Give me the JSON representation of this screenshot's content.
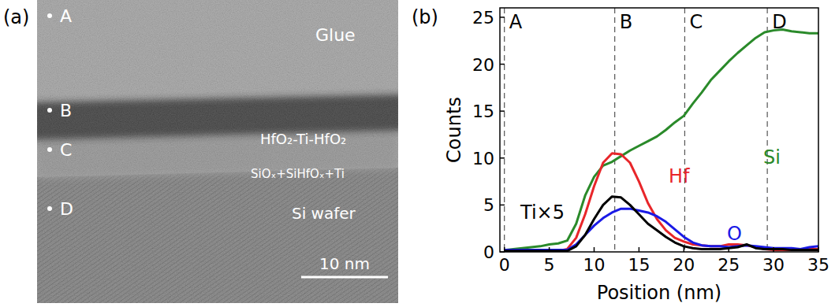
{
  "panel_labels": [
    "(a)",
    "(b)"
  ],
  "image_panel": {
    "points": [
      "A",
      "B",
      "C",
      "D"
    ],
    "layers": [
      "Glue",
      "HfO₂-Ti-HfO₂",
      "SiOₓ+SiHfOₓ+Ti",
      "Si wafer"
    ],
    "scale_bar": "10 nm"
  },
  "chart_data": {
    "type": "line",
    "x_label": "Position (nm)",
    "y_label": "Counts",
    "xlim": [
      -0.5,
      35
    ],
    "ylim": [
      0,
      26
    ],
    "xticks": [
      0,
      5,
      10,
      15,
      20,
      25,
      30,
      35
    ],
    "yticks": [
      0,
      5,
      10,
      15,
      20,
      25
    ],
    "markers": [
      {
        "label": "A",
        "x": 0
      },
      {
        "label": "B",
        "x": 12.3
      },
      {
        "label": "C",
        "x": 20.1
      },
      {
        "label": "D",
        "x": 29.3
      }
    ],
    "x": [
      0,
      1,
      2,
      3,
      4,
      5,
      6,
      7,
      8,
      9,
      10,
      11,
      12,
      13,
      14,
      15,
      16,
      17,
      18,
      19,
      20,
      21,
      22,
      23,
      24,
      25,
      26,
      27,
      28,
      29,
      30,
      31,
      32,
      33,
      34,
      35
    ],
    "series": [
      {
        "name": "Si",
        "color": "#2a8a2a",
        "values": [
          0.2,
          0.3,
          0.4,
          0.5,
          0.6,
          0.8,
          0.9,
          1.2,
          3,
          6,
          8,
          9.2,
          9.6,
          10.2,
          10.8,
          11.3,
          11.8,
          12.3,
          13,
          13.8,
          14.5,
          15.8,
          17,
          18.3,
          19.3,
          20.3,
          21.2,
          22,
          22.8,
          23.4,
          23.6,
          23.7,
          23.5,
          23.4,
          23.3,
          23.3
        ]
      },
      {
        "name": "Hf",
        "color": "#e8262a",
        "values": [
          0,
          0,
          0,
          0,
          0,
          0,
          0.1,
          0.3,
          1.5,
          4,
          7,
          9.5,
          10.5,
          10.4,
          9.5,
          7.5,
          5.2,
          3.5,
          2.3,
          1.5,
          1.1,
          0.8,
          0.7,
          0.6,
          0.6,
          0.8,
          0.8,
          0.7,
          0.5,
          0.3,
          0.2,
          0.2,
          0.2,
          0.2,
          0.3,
          0.3
        ]
      },
      {
        "name": "O",
        "color": "#1a1ae6",
        "values": [
          0.2,
          0.2,
          0.2,
          0.2,
          0.2,
          0.2,
          0.2,
          0.2,
          0.8,
          1.8,
          2.8,
          3.6,
          4.2,
          4.6,
          4.6,
          4.4,
          4.2,
          3.8,
          3.2,
          2.4,
          1.6,
          1,
          0.7,
          0.6,
          0.6,
          0.5,
          0.6,
          0.7,
          0.6,
          0.5,
          0.4,
          0.4,
          0.4,
          0.3,
          0.5,
          0.6
        ]
      },
      {
        "name": "Ti×5",
        "color": "#000000",
        "values": [
          0.1,
          0.1,
          0.1,
          0.1,
          0.1,
          0.1,
          0.1,
          0.1,
          0.6,
          1.8,
          3.5,
          5,
          5.9,
          5.8,
          5,
          4,
          3,
          2.3,
          1.6,
          1,
          0.6,
          0.4,
          0.3,
          0.3,
          0.3,
          0.4,
          0.5,
          0.8,
          0.4,
          0.3,
          0.3,
          0.3,
          0.2,
          0.2,
          0.2,
          0.2
        ]
      }
    ]
  }
}
